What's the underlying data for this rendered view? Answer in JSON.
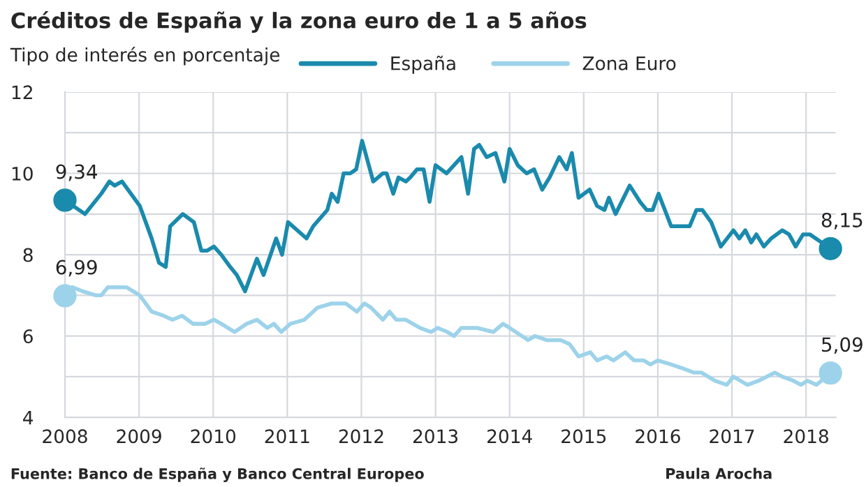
{
  "chart_data": {
    "type": "line",
    "title": "Créditos de España y la zona euro de 1 a 5 años",
    "subtitle": "Tipo de interés en porcentaje",
    "xlim": [
      2008,
      2018.4
    ],
    "xticks": [
      2008,
      2009,
      2010,
      2011,
      2012,
      2013,
      2014,
      2015,
      2016,
      2017,
      2018
    ],
    "ylim": [
      4,
      12
    ],
    "yticks": [
      4,
      {
        "value": 5,
        "label": null
      },
      6,
      {
        "value": 7,
        "label": null
      },
      8,
      {
        "value": 9,
        "label": null
      },
      10,
      {
        "value": 11,
        "label": null
      },
      12
    ],
    "grid": true,
    "legend": "top",
    "line_style": "solid",
    "series": [
      {
        "name": "España",
        "color": "#1a8aad",
        "x": [
          2008.0,
          2008.27,
          2008.49,
          2008.6,
          2008.67,
          2008.77,
          2009.01,
          2009.17,
          2009.27,
          2009.36,
          2009.42,
          2009.59,
          2009.74,
          2009.84,
          2009.92,
          2010.01,
          2010.11,
          2010.23,
          2010.32,
          2010.43,
          2010.59,
          2010.68,
          2010.85,
          2010.93,
          2011.01,
          2011.26,
          2011.35,
          2011.54,
          2011.6,
          2011.68,
          2011.76,
          2011.85,
          2011.93,
          2012.01,
          2012.16,
          2012.29,
          2012.34,
          2012.43,
          2012.5,
          2012.6,
          2012.66,
          2012.75,
          2012.84,
          2012.92,
          2013.0,
          2013.15,
          2013.35,
          2013.44,
          2013.52,
          2013.59,
          2013.69,
          2013.81,
          2013.93,
          2014.0,
          2014.11,
          2014.23,
          2014.33,
          2014.44,
          2014.54,
          2014.67,
          2014.77,
          2014.84,
          2014.93,
          2015.08,
          2015.18,
          2015.28,
          2015.34,
          2015.43,
          2015.62,
          2015.76,
          2015.85,
          2015.93,
          2016.01,
          2016.18,
          2016.29,
          2016.37,
          2016.43,
          2016.52,
          2016.6,
          2016.72,
          2016.85,
          2017.02,
          2017.1,
          2017.18,
          2017.26,
          2017.33,
          2017.43,
          2017.53,
          2017.68,
          2017.77,
          2017.86,
          2017.96,
          2018.05,
          2018.21,
          2018.33
        ],
        "values": [
          9.34,
          9.0,
          9.5,
          9.8,
          9.7,
          9.8,
          9.2,
          8.4,
          7.8,
          7.7,
          8.7,
          9.0,
          8.8,
          8.1,
          8.1,
          8.2,
          8.0,
          7.7,
          7.5,
          7.1,
          7.9,
          7.5,
          8.4,
          8.0,
          8.8,
          8.4,
          8.7,
          9.1,
          9.5,
          9.3,
          10.0,
          10.0,
          10.1,
          10.8,
          9.8,
          10.0,
          10.0,
          9.5,
          9.9,
          9.8,
          9.9,
          10.1,
          10.1,
          9.3,
          10.2,
          10.0,
          10.4,
          9.5,
          10.6,
          10.7,
          10.4,
          10.5,
          9.8,
          10.6,
          10.2,
          10.0,
          10.1,
          9.6,
          9.9,
          10.4,
          10.1,
          10.5,
          9.4,
          9.6,
          9.2,
          9.1,
          9.4,
          9.0,
          9.7,
          9.3,
          9.1,
          9.1,
          9.5,
          8.7,
          8.7,
          8.7,
          8.7,
          9.1,
          9.1,
          8.8,
          8.2,
          8.6,
          8.4,
          8.6,
          8.3,
          8.5,
          8.2,
          8.4,
          8.6,
          8.5,
          8.2,
          8.5,
          8.5,
          8.3,
          8.15
        ],
        "value_labels": [
          "9,34",
          null,
          null,
          null,
          null,
          null,
          null,
          null,
          null,
          null,
          null,
          null,
          null,
          null,
          null,
          null,
          null,
          null,
          null,
          null,
          null,
          null,
          null,
          null,
          null,
          null,
          null,
          null,
          null,
          null,
          null,
          null,
          null,
          null,
          null,
          null,
          null,
          null,
          null,
          null,
          null,
          null,
          null,
          null,
          null,
          null,
          null,
          null,
          null,
          null,
          null,
          null,
          null,
          null,
          null,
          null,
          null,
          null,
          null,
          null,
          null,
          null,
          null,
          null,
          null,
          null,
          null,
          null,
          null,
          null,
          null,
          null,
          null,
          null,
          null,
          null,
          null,
          null,
          null,
          null,
          null,
          null,
          null,
          null,
          null,
          null,
          null,
          null,
          null,
          null,
          null,
          null,
          null,
          null,
          "8,15"
        ]
      },
      {
        "name": "Zona Euro",
        "color": "#9dd3ea",
        "x": [
          2008.0,
          2008.1,
          2008.24,
          2008.42,
          2008.49,
          2008.58,
          2008.83,
          2009.01,
          2009.17,
          2009.33,
          2009.45,
          2009.58,
          2009.73,
          2009.89,
          2010.01,
          2010.11,
          2010.29,
          2010.45,
          2010.59,
          2010.73,
          2010.82,
          2010.92,
          2011.04,
          2011.23,
          2011.41,
          2011.6,
          2011.79,
          2011.94,
          2012.04,
          2012.13,
          2012.29,
          2012.38,
          2012.47,
          2012.6,
          2012.79,
          2012.94,
          2013.03,
          2013.16,
          2013.25,
          2013.35,
          2013.44,
          2013.56,
          2013.78,
          2013.91,
          2014.0,
          2014.25,
          2014.34,
          2014.5,
          2014.69,
          2014.81,
          2014.93,
          2015.09,
          2015.18,
          2015.31,
          2015.4,
          2015.56,
          2015.68,
          2015.81,
          2015.9,
          2016.0,
          2016.18,
          2016.34,
          2016.49,
          2016.59,
          2016.77,
          2016.93,
          2017.02,
          2017.21,
          2017.36,
          2017.58,
          2017.68,
          2017.83,
          2017.93,
          2018.02,
          2018.14,
          2018.33
        ],
        "values": [
          6.99,
          7.2,
          7.1,
          7.0,
          7.0,
          7.2,
          7.2,
          7.0,
          6.6,
          6.5,
          6.4,
          6.5,
          6.3,
          6.3,
          6.4,
          6.3,
          6.1,
          6.3,
          6.4,
          6.2,
          6.3,
          6.1,
          6.3,
          6.4,
          6.7,
          6.8,
          6.8,
          6.6,
          6.8,
          6.7,
          6.4,
          6.6,
          6.4,
          6.4,
          6.2,
          6.1,
          6.2,
          6.1,
          6.0,
          6.2,
          6.2,
          6.2,
          6.1,
          6.3,
          6.2,
          5.9,
          6.0,
          5.9,
          5.9,
          5.8,
          5.5,
          5.6,
          5.4,
          5.5,
          5.4,
          5.6,
          5.4,
          5.4,
          5.3,
          5.4,
          5.3,
          5.2,
          5.1,
          5.1,
          4.9,
          4.8,
          5.0,
          4.8,
          4.9,
          5.1,
          5.0,
          4.9,
          4.8,
          4.9,
          4.8,
          5.09
        ],
        "value_labels": [
          "6,99",
          null,
          null,
          null,
          null,
          null,
          null,
          null,
          null,
          null,
          null,
          null,
          null,
          null,
          null,
          null,
          null,
          null,
          null,
          null,
          null,
          null,
          null,
          null,
          null,
          null,
          null,
          null,
          null,
          null,
          null,
          null,
          null,
          null,
          null,
          null,
          null,
          null,
          null,
          null,
          null,
          null,
          null,
          null,
          null,
          null,
          null,
          null,
          null,
          null,
          null,
          null,
          null,
          null,
          null,
          null,
          null,
          null,
          null,
          null,
          null,
          null,
          null,
          null,
          null,
          null,
          null,
          null,
          null,
          null,
          null,
          null,
          null,
          null,
          null,
          "5,09"
        ]
      }
    ],
    "annotations": [
      "Fuente: Banco de España y Banco Central Europeo",
      "Paula Arocha"
    ]
  }
}
